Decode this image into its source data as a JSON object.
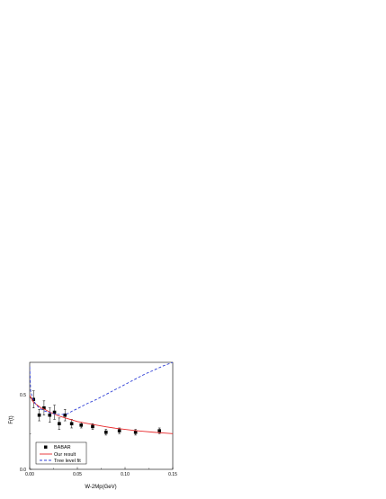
{
  "chart_data": {
    "type": "scatter",
    "title": "",
    "xlabel": "W-2Mp(GeV)",
    "ylabel": "F(t)",
    "xlim": [
      0.0,
      0.15
    ],
    "ylim": [
      0.0,
      0.75
    ],
    "x_ticks": [
      "0.00",
      "0.05",
      "0.10",
      "0.15"
    ],
    "y_ticks": [
      "0.0",
      "0.5"
    ],
    "legend": {
      "placement": "bottom-left",
      "entries": [
        "BABAR",
        "Our result",
        "Tree level fit"
      ]
    },
    "series": [
      {
        "name": "BABAR",
        "kind": "points-with-errors",
        "color": "#000000",
        "points": [
          {
            "x": 0.004,
            "y": 0.49,
            "err": 0.06
          },
          {
            "x": 0.01,
            "y": 0.38,
            "err": 0.04
          },
          {
            "x": 0.015,
            "y": 0.43,
            "err": 0.05
          },
          {
            "x": 0.021,
            "y": 0.38,
            "err": 0.05
          },
          {
            "x": 0.026,
            "y": 0.4,
            "err": 0.05
          },
          {
            "x": 0.031,
            "y": 0.32,
            "err": 0.04
          },
          {
            "x": 0.037,
            "y": 0.38,
            "err": 0.04
          },
          {
            "x": 0.044,
            "y": 0.32,
            "err": 0.03
          },
          {
            "x": 0.054,
            "y": 0.31,
            "err": 0.02
          },
          {
            "x": 0.066,
            "y": 0.3,
            "err": 0.02
          },
          {
            "x": 0.08,
            "y": 0.26,
            "err": 0.02
          },
          {
            "x": 0.094,
            "y": 0.27,
            "err": 0.02
          },
          {
            "x": 0.111,
            "y": 0.26,
            "err": 0.02
          },
          {
            "x": 0.136,
            "y": 0.27,
            "err": 0.02
          }
        ]
      },
      {
        "name": "Our result",
        "kind": "line",
        "color": "#e8282b",
        "style": "solid",
        "points": [
          [
            0.0,
            0.52
          ],
          [
            0.004,
            0.47
          ],
          [
            0.008,
            0.45
          ],
          [
            0.012,
            0.43
          ],
          [
            0.016,
            0.42
          ],
          [
            0.02,
            0.405
          ],
          [
            0.025,
            0.39
          ],
          [
            0.03,
            0.375
          ],
          [
            0.035,
            0.365
          ],
          [
            0.04,
            0.355
          ],
          [
            0.05,
            0.335
          ],
          [
            0.06,
            0.322
          ],
          [
            0.07,
            0.31
          ],
          [
            0.08,
            0.298
          ],
          [
            0.09,
            0.288
          ],
          [
            0.1,
            0.28
          ],
          [
            0.11,
            0.272
          ],
          [
            0.12,
            0.266
          ],
          [
            0.13,
            0.26
          ],
          [
            0.14,
            0.255
          ],
          [
            0.15,
            0.25
          ]
        ]
      },
      {
        "name": "Tree level fit",
        "kind": "line",
        "color": "#2f3fd6",
        "style": "dashed",
        "points": [
          [
            0.0,
            0.72
          ],
          [
            0.001,
            0.55
          ],
          [
            0.003,
            0.5
          ],
          [
            0.006,
            0.46
          ],
          [
            0.01,
            0.43
          ],
          [
            0.015,
            0.41
          ],
          [
            0.02,
            0.4
          ],
          [
            0.025,
            0.39
          ],
          [
            0.03,
            0.385
          ],
          [
            0.035,
            0.385
          ],
          [
            0.04,
            0.39
          ],
          [
            0.045,
            0.41
          ],
          [
            0.05,
            0.425
          ],
          [
            0.06,
            0.46
          ],
          [
            0.07,
            0.49
          ],
          [
            0.08,
            0.525
          ],
          [
            0.09,
            0.56
          ],
          [
            0.1,
            0.595
          ],
          [
            0.11,
            0.63
          ],
          [
            0.12,
            0.665
          ],
          [
            0.13,
            0.695
          ],
          [
            0.14,
            0.725
          ],
          [
            0.15,
            0.75
          ]
        ]
      }
    ]
  }
}
